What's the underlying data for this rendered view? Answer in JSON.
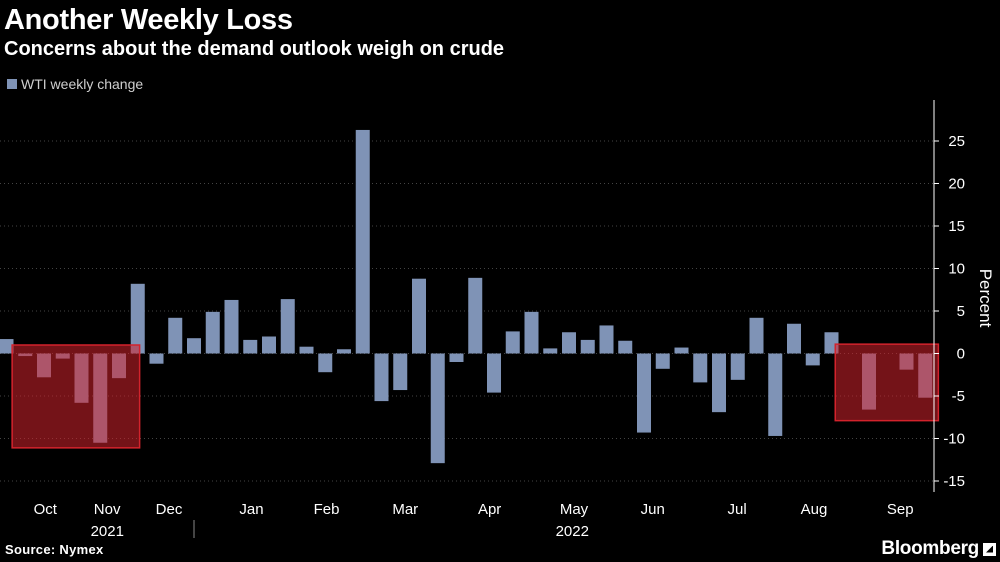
{
  "title": "Another Weekly Loss",
  "subtitle": "Concerns about the demand outlook weigh on crude",
  "legend_label": "WTI weekly change",
  "source": "Source: Nymex",
  "brand": "Bloomberg",
  "colors": {
    "background": "#000000",
    "bar": "#7f93b6",
    "highlight_fill": "#d3232c",
    "grid": "#444444",
    "text": "#ffffff"
  },
  "chart_data": {
    "type": "bar",
    "series_name": "WTI weekly change",
    "ylabel": "Percent",
    "ylim": [
      -16.5,
      30
    ],
    "yticks": [
      25,
      20,
      15,
      10,
      5,
      0,
      -5,
      -10,
      -15
    ],
    "values": [
      1.7,
      -0.3,
      -2.8,
      -0.6,
      -5.8,
      -10.5,
      -2.9,
      8.2,
      -1.2,
      4.2,
      1.8,
      4.9,
      6.3,
      1.6,
      2.0,
      6.4,
      0.8,
      -2.2,
      0.5,
      26.3,
      -5.6,
      -4.3,
      8.8,
      -12.9,
      -1.0,
      8.9,
      -4.6,
      2.6,
      4.9,
      0.6,
      2.5,
      1.6,
      3.3,
      1.5,
      -9.3,
      -1.8,
      0.7,
      -3.4,
      -6.9,
      -3.1,
      4.2,
      -9.7,
      3.5,
      -1.4,
      2.5,
      0.0,
      -6.6,
      0.0,
      -1.9,
      -5.2
    ],
    "x_labels": [
      {
        "label": "Oct",
        "week": 1
      },
      {
        "label": "Nov",
        "week": 4.3
      },
      {
        "label": "Dec",
        "week": 7.6
      },
      {
        "label": "Jan",
        "week": 12
      },
      {
        "label": "Feb",
        "week": 16
      },
      {
        "label": "Mar",
        "week": 20.2
      },
      {
        "label": "Apr",
        "week": 24.7
      },
      {
        "label": "May",
        "week": 29.2
      },
      {
        "label": "Jun",
        "week": 33.4
      },
      {
        "label": "Jul",
        "week": 37.9
      },
      {
        "label": "Aug",
        "week": 42
      },
      {
        "label": "Sep",
        "week": 46.6
      }
    ],
    "year_labels": [
      {
        "label": "2021",
        "week": 5.0
      },
      {
        "label": "2022",
        "week": 29.8
      }
    ],
    "year_divider_week": 10,
    "highlights": [
      {
        "from_week": 0.3,
        "to_week": 7.1,
        "y_top": 1.0,
        "y_bottom": -11.1
      },
      {
        "from_week": 44.2,
        "to_week": 49.7,
        "y_top": 1.1,
        "y_bottom": -7.9
      }
    ]
  }
}
